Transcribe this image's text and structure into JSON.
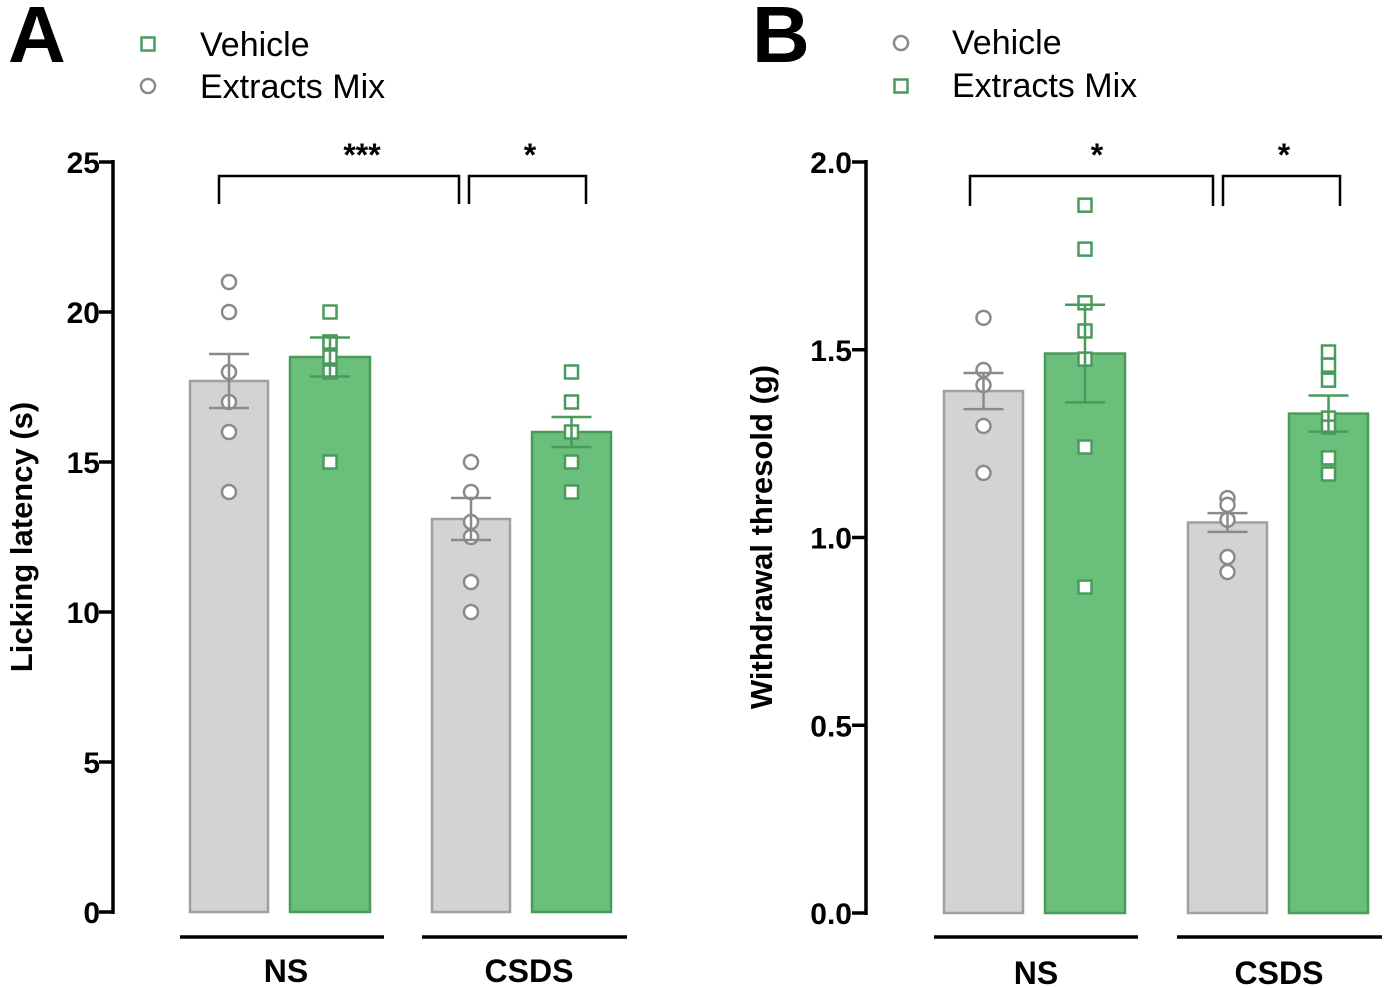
{
  "colors": {
    "vehicle_fill": "#d3d3d3",
    "vehicle_stroke": "#a0a0a0",
    "mix_fill": "#6abf7b",
    "mix_stroke": "#4a9a5c",
    "point_gray": "#8a8a8a",
    "point_green": "#4a9a5c"
  },
  "chart_data": [
    {
      "type": "bar",
      "panel": "A",
      "legend": [
        {
          "label": "Vehicle",
          "marker": "square-green"
        },
        {
          "label": "Extracts Mix",
          "marker": "circle-gray"
        }
      ],
      "ylabel": "Licking latency (s)",
      "ylim": [
        0,
        25
      ],
      "yticks": [
        "0",
        "5",
        "10",
        "15",
        "20",
        "25"
      ],
      "yticks_values": [
        0,
        5,
        10,
        15,
        20,
        25
      ],
      "groups": [
        "NS",
        "CSDS"
      ],
      "series": [
        {
          "name": "Vehicle",
          "means": [
            17.7,
            13.1
          ],
          "sem": [
            0.9,
            0.7
          ],
          "points": [
            [
              21,
              20,
              18,
              17,
              16,
              14
            ],
            [
              15,
              14,
              13,
              12.5,
              11,
              10
            ]
          ]
        },
        {
          "name": "Extracts Mix",
          "means": [
            18.5,
            16.0
          ],
          "sem": [
            0.65,
            0.5
          ],
          "points": [
            [
              20,
              19,
              19,
              18.5,
              18,
              15
            ],
            [
              18,
              17,
              16,
              15,
              14
            ]
          ]
        }
      ],
      "significance": [
        {
          "label": "***",
          "from": "NS Vehicle",
          "to": "CSDS Vehicle"
        },
        {
          "label": "*",
          "from": "CSDS Vehicle",
          "to": "CSDS Extracts Mix"
        }
      ]
    },
    {
      "type": "bar",
      "panel": "B",
      "legend": [
        {
          "label": "Vehicle",
          "marker": "circle-gray"
        },
        {
          "label": "Extracts Mix",
          "marker": "square-green"
        }
      ],
      "ylabel": "Withdrawal thresold (g)",
      "ylim": [
        0,
        2.0
      ],
      "yticks": [
        "0.0",
        "0.5",
        "1.0",
        "1.5",
        "2.0"
      ],
      "yticks_values": [
        0,
        0.5,
        1.0,
        1.5,
        2.0
      ],
      "groups": [
        "NS",
        "CSDS"
      ],
      "series": [
        {
          "name": "Vehicle",
          "means": [
            1.39,
            1.04
          ],
          "sem": [
            0.048,
            0.025
          ],
          "points": [
            [
              1.585,
              1.446,
              1.406,
              1.297,
              1.172
            ],
            [
              1.105,
              1.087,
              1.047,
              0.948,
              0.908
            ]
          ]
        },
        {
          "name": "Extracts Mix",
          "means": [
            1.49,
            1.33
          ],
          "sem": [
            0.13,
            0.048
          ],
          "points": [
            [
              1.885,
              1.768,
              1.625,
              1.55,
              1.475,
              1.241,
              0.868
            ],
            [
              1.494,
              1.459,
              1.419,
              1.318,
              1.294,
              1.212,
              1.169
            ]
          ]
        }
      ],
      "significance": [
        {
          "label": "*",
          "from": "NS Vehicle",
          "to": "CSDS Vehicle"
        },
        {
          "label": "*",
          "from": "CSDS Vehicle",
          "to": "CSDS Extracts Mix"
        }
      ]
    }
  ]
}
